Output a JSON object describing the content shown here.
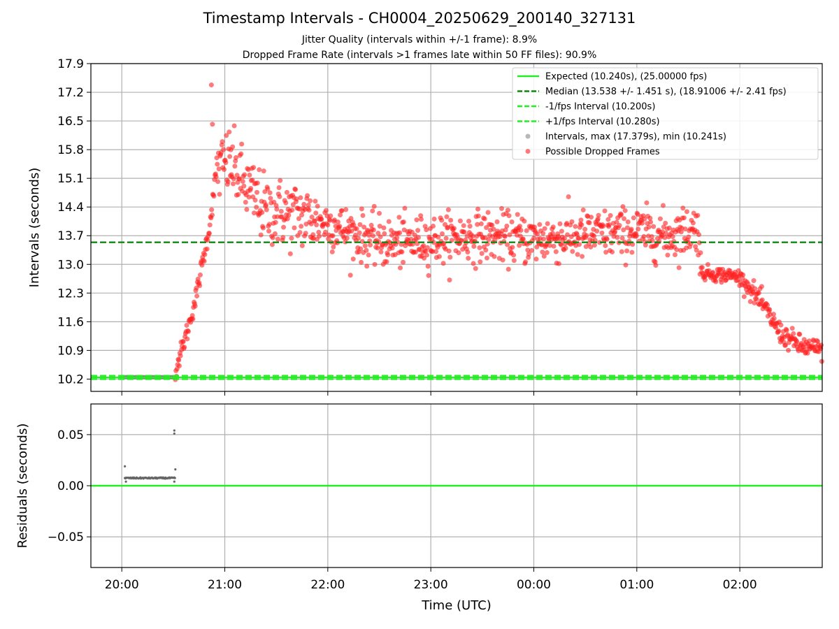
{
  "figure": {
    "title": "Timestamp Intervals - CH0004_20250629_200140_327131",
    "subtitle_1": "Jitter Quality (intervals within +/-1 frame): 8.9%",
    "subtitle_2": "Dropped Frame Rate (intervals >1 frames late within 50 FF files): 90.9%"
  },
  "chart_data": [
    {
      "type": "scatter",
      "panel": "intervals",
      "xlabel": "",
      "ylabel": "Intervals (seconds)",
      "x_unit": "hours from 20:00 UTC (2025-06-29)",
      "xlim": [
        -0.3,
        6.8
      ],
      "ylim": [
        9.9,
        17.9
      ],
      "yticks": [
        10.2,
        10.9,
        11.6,
        12.3,
        13.0,
        13.7,
        14.4,
        15.1,
        15.8,
        16.5,
        17.2,
        17.9
      ],
      "xticks": [
        "20:00",
        "21:00",
        "22:00",
        "23:00",
        "00:00",
        "01:00",
        "02:00"
      ],
      "grid": true,
      "legend_position": "top-right",
      "reference_lines": [
        {
          "label": "Expected (10.240s), (25.00000 fps)",
          "y": 10.24,
          "style": "solid",
          "color": "#22ee22"
        },
        {
          "label": "Median (13.538 +/- 1.451 s), (18.91006 +/- 2.41 fps)",
          "y": 13.538,
          "style": "dashed",
          "color": "#118811"
        },
        {
          "label": "-1/fps Interval (10.200s)",
          "y": 10.2,
          "style": "dashed",
          "color": "#22ee22"
        },
        {
          "label": "+1/fps Interval (10.280s)",
          "y": 10.28,
          "style": "dashed",
          "color": "#22ee22"
        }
      ],
      "series": [
        {
          "name": "Intervals, max (17.379s), min (10.241s)",
          "color": "#888888",
          "marker": "circle",
          "x_range": [
            0.03,
            0.52
          ],
          "y": 10.248
        },
        {
          "name": "Possible Dropped Frames",
          "color": "#ff2222",
          "marker": "circle",
          "outliers": [
            [
              0.87,
              17.379
            ],
            [
              0.88,
              16.42
            ]
          ],
          "trend": [
            [
              0.52,
              10.4
            ],
            [
              0.58,
              10.9
            ],
            [
              0.65,
              11.5
            ],
            [
              0.72,
              12.2
            ],
            [
              0.78,
              13.0
            ],
            [
              0.85,
              13.9
            ],
            [
              0.92,
              15.3
            ],
            [
              1.05,
              15.5
            ],
            [
              1.2,
              14.9
            ],
            [
              1.4,
              14.3
            ],
            [
              1.7,
              14.2
            ],
            [
              2.0,
              14.0
            ],
            [
              2.3,
              13.7
            ],
            [
              2.6,
              13.5
            ],
            [
              3.0,
              13.6
            ],
            [
              3.5,
              13.7
            ],
            [
              4.0,
              13.6
            ],
            [
              4.5,
              13.7
            ],
            [
              5.0,
              13.8
            ],
            [
              5.3,
              13.7
            ],
            [
              5.6,
              13.9
            ],
            [
              5.62,
              12.8
            ],
            [
              6.0,
              12.7
            ],
            [
              6.2,
              12.1
            ],
            [
              6.4,
              11.3
            ],
            [
              6.6,
              11.0
            ],
            [
              6.8,
              10.9
            ]
          ]
        }
      ]
    },
    {
      "type": "scatter",
      "panel": "residuals",
      "xlabel": "Time (UTC)",
      "ylabel": "Residuals (seconds)",
      "ylim": [
        -0.08,
        0.08
      ],
      "yticks": [
        "−0.05",
        "0.00",
        "0.05"
      ],
      "ytick_values": [
        -0.05,
        0.0,
        0.05
      ],
      "grid": true,
      "reference_lines": [
        {
          "y": 0.0,
          "style": "solid",
          "color": "#22ee22"
        }
      ],
      "series": [
        {
          "color": "#666666",
          "marker": "circle",
          "x_range": [
            0.03,
            0.52
          ],
          "y": 0.0075,
          "outliers": [
            [
              0.03,
              0.019
            ],
            [
              0.04,
              0.004
            ],
            [
              0.51,
              0.054
            ],
            [
              0.51,
              0.051
            ],
            [
              0.52,
              0.016
            ],
            [
              0.51,
              0.004
            ]
          ]
        }
      ]
    }
  ]
}
